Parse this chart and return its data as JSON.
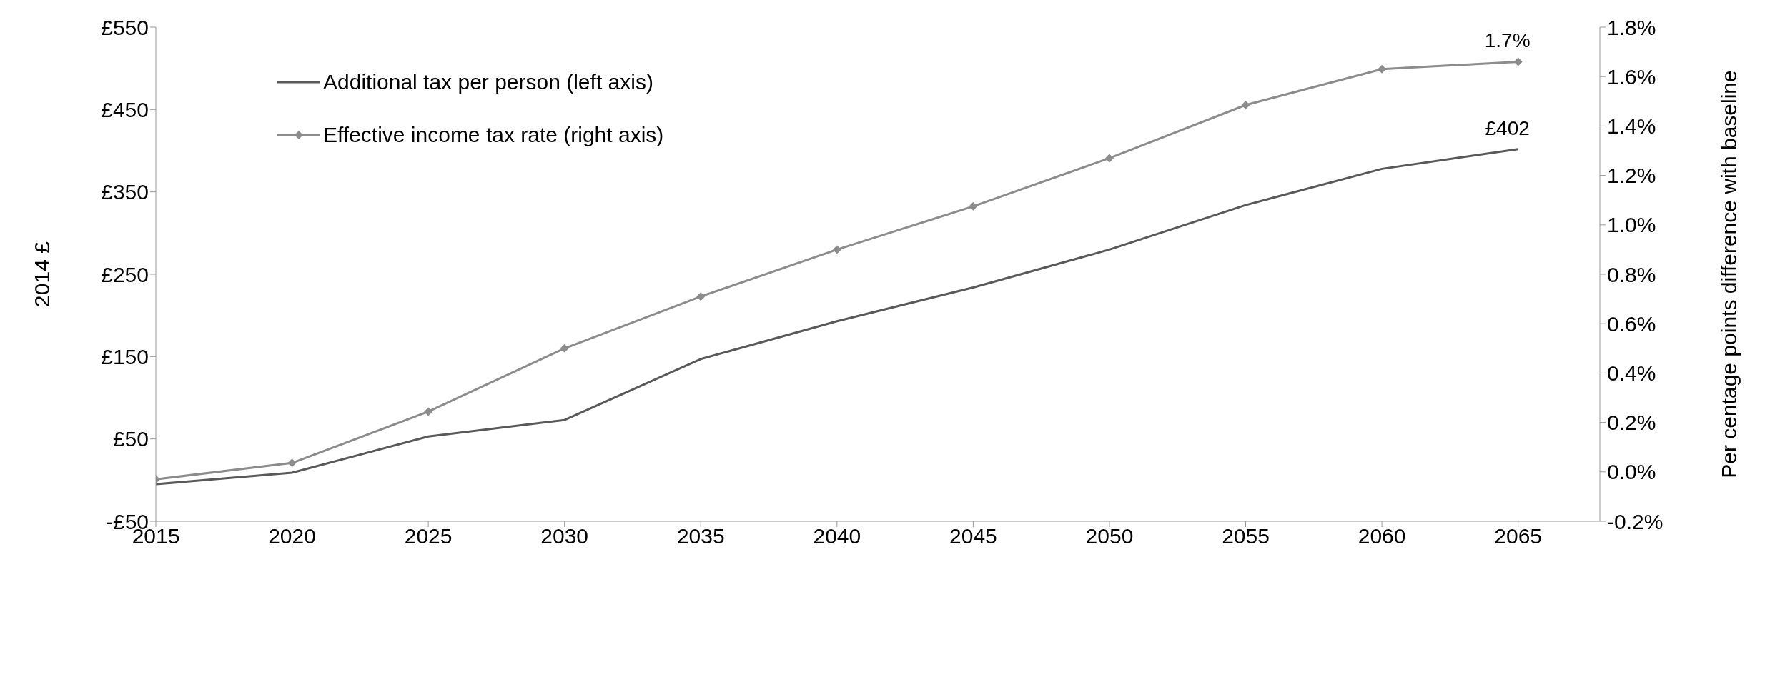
{
  "chart_data": {
    "type": "line",
    "ylabel": "2014 £",
    "y2label": "Per centage points difference with baseline",
    "x": [
      2015,
      2020,
      2025,
      2030,
      2035,
      2040,
      2045,
      2050,
      2055,
      2060,
      2065
    ],
    "xlim": [
      2015,
      2068
    ],
    "xticks": [
      2015,
      2020,
      2025,
      2030,
      2035,
      2040,
      2045,
      2050,
      2055,
      2060,
      2065
    ],
    "ylim": [
      -50,
      550
    ],
    "yticks": [
      {
        "value": -50,
        "label": "-£50"
      },
      {
        "value": 50,
        "label": "£50"
      },
      {
        "value": 150,
        "label": "£150"
      },
      {
        "value": 250,
        "label": "£250"
      },
      {
        "value": 350,
        "label": "£350"
      },
      {
        "value": 450,
        "label": "£450"
      },
      {
        "value": 550,
        "label": "£550"
      }
    ],
    "y2lim": [
      -0.2,
      1.8
    ],
    "y2ticks": [
      {
        "value": -0.2,
        "label": "-0.2%"
      },
      {
        "value": 0,
        "label": "0.0%"
      },
      {
        "value": 0.2,
        "label": "0.2%"
      },
      {
        "value": 0.4,
        "label": "0.4%"
      },
      {
        "value": 0.6,
        "label": "0.6%"
      },
      {
        "value": 0.8,
        "label": "0.8%"
      },
      {
        "value": 1.0,
        "label": "1.0%"
      },
      {
        "value": 1.2,
        "label": "1.2%"
      },
      {
        "value": 1.4,
        "label": "1.4%"
      },
      {
        "value": 1.6,
        "label": "1.6%"
      },
      {
        "value": 1.8,
        "label": "1.8%"
      }
    ],
    "grid": false,
    "legend": "top left",
    "line_style": "solid",
    "series": [
      {
        "name": "Additional tax per person (left axis)",
        "color": "#595959",
        "marker": "none",
        "values": [
          -5,
          9,
          53,
          73,
          147,
          193,
          234,
          280,
          334,
          378,
          402
        ],
        "value_labels": [
          null,
          null,
          null,
          null,
          null,
          null,
          null,
          null,
          null,
          null,
          "£402"
        ]
      },
      {
        "name": "Effective income tax rate (right axis)",
        "color": "#8c8c8c",
        "marker": "diamond",
        "axis": "y2",
        "values": [
          -0.03,
          0.036,
          0.244,
          0.5,
          0.71,
          0.9,
          1.075,
          1.27,
          1.485,
          1.63,
          1.66
        ],
        "value_labels": [
          null,
          null,
          null,
          null,
          null,
          null,
          null,
          null,
          null,
          null,
          "1.7%"
        ]
      }
    ]
  }
}
